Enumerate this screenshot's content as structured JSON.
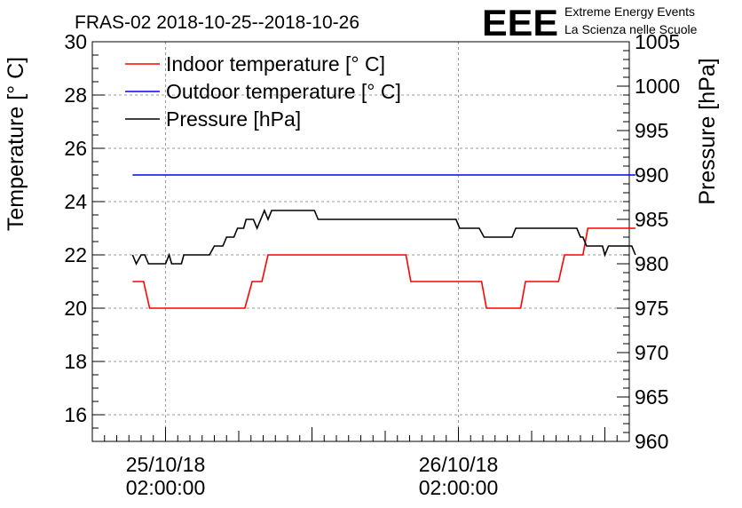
{
  "chart_data": {
    "type": "line",
    "title": "FRAS-02 2018-10-25--2018-10-26",
    "logo": {
      "text": "EEE",
      "line1": "Extreme Energy Events",
      "line2": "La Scienza nelle Scuole",
      "color": "#0000ff"
    },
    "ylabel": "Temperature [° C]",
    "y2label": "Pressure [hPa]",
    "ylim": [
      15,
      30
    ],
    "y2lim": [
      960,
      1005
    ],
    "xlim": [
      0,
      44
    ],
    "yticks": [
      "16",
      "18",
      "20",
      "22",
      "24",
      "26",
      "28",
      "30"
    ],
    "y2ticks": [
      "960",
      "965",
      "970",
      "975",
      "980",
      "985",
      "990",
      "995",
      "1000",
      "1005"
    ],
    "xticks": [
      {
        "x": 6,
        "line1": "25/10/18",
        "line2": "02:00:00"
      },
      {
        "x": 30,
        "line1": "26/10/18",
        "line2": "02:00:00"
      }
    ],
    "grid": true,
    "legend_position": "top-left",
    "series": [
      {
        "name": "Indoor temperature [° C]",
        "axis": "left",
        "color": "#ff0000",
        "points": [
          [
            3.3,
            21
          ],
          [
            4.2,
            21
          ],
          [
            4.7,
            20
          ],
          [
            12.5,
            20
          ],
          [
            13.1,
            21
          ],
          [
            13.9,
            21
          ],
          [
            14.4,
            22
          ],
          [
            25.7,
            22
          ],
          [
            26.1,
            21
          ],
          [
            31.9,
            21
          ],
          [
            32.3,
            20
          ],
          [
            35.1,
            20
          ],
          [
            35.5,
            21
          ],
          [
            38.2,
            21
          ],
          [
            38.7,
            22
          ],
          [
            40.2,
            22
          ],
          [
            40.6,
            23
          ],
          [
            44.5,
            23
          ]
        ]
      },
      {
        "name": "Outdoor temperature [° C]",
        "axis": "left",
        "color": "#0000ff",
        "points": [
          [
            3.3,
            25
          ],
          [
            44.5,
            25
          ]
        ]
      },
      {
        "name": "Pressure [hPa]",
        "axis": "right",
        "color": "#000000",
        "points": [
          [
            3.3,
            981
          ],
          [
            3.6,
            980
          ],
          [
            4,
            981
          ],
          [
            4.3,
            981
          ],
          [
            4.6,
            980
          ],
          [
            6,
            980
          ],
          [
            6.3,
            981
          ],
          [
            6.5,
            980
          ],
          [
            7.3,
            980
          ],
          [
            7.5,
            981
          ],
          [
            9.6,
            981
          ],
          [
            10,
            982
          ],
          [
            10.7,
            982
          ],
          [
            11,
            983
          ],
          [
            11.6,
            983
          ],
          [
            11.9,
            984
          ],
          [
            12.4,
            984
          ],
          [
            12.6,
            985
          ],
          [
            13.2,
            985
          ],
          [
            13.5,
            984
          ],
          [
            13.8,
            985
          ],
          [
            14.1,
            986
          ],
          [
            14.4,
            985
          ],
          [
            14.7,
            986
          ],
          [
            18.2,
            986
          ],
          [
            18.5,
            985
          ],
          [
            29.8,
            985
          ],
          [
            30.1,
            984
          ],
          [
            31.7,
            984
          ],
          [
            32.1,
            983
          ],
          [
            34.4,
            983
          ],
          [
            34.7,
            984
          ],
          [
            39.7,
            984
          ],
          [
            40,
            983
          ],
          [
            40.2,
            983
          ],
          [
            40.5,
            982
          ],
          [
            41.8,
            982
          ],
          [
            42,
            981
          ],
          [
            42.3,
            982
          ],
          [
            44.2,
            982
          ],
          [
            44.5,
            981
          ]
        ]
      }
    ]
  }
}
